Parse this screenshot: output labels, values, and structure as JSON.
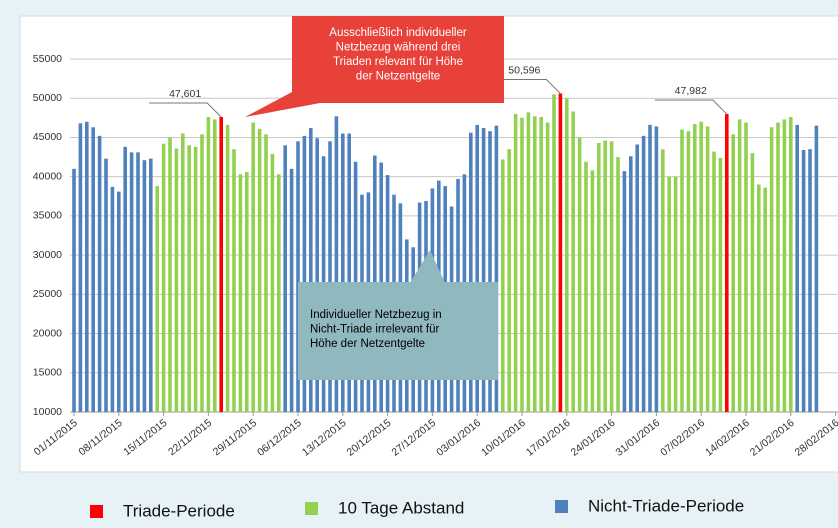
{
  "chart_data": {
    "type": "bar",
    "categories": [
      "01/11/2015",
      null,
      null,
      null,
      null,
      null,
      null,
      "08/11/2015",
      null,
      null,
      null,
      null,
      null,
      null,
      "15/11/2015",
      null,
      null,
      null,
      null,
      null,
      null,
      "22/11/2015",
      null,
      null,
      null,
      null,
      null,
      null,
      "29/11/2015",
      null,
      null,
      null,
      null,
      null,
      null,
      "06/12/2015",
      null,
      null,
      null,
      null,
      null,
      null,
      "13/12/2015",
      null,
      null,
      null,
      null,
      null,
      null,
      "20/12/2015",
      null,
      null,
      null,
      null,
      null,
      null,
      "27/12/2015",
      null,
      null,
      null,
      null,
      null,
      null,
      "03/01/2016",
      null,
      null,
      null,
      null,
      null,
      null,
      "10/01/2016",
      null,
      null,
      null,
      null,
      null,
      null,
      "17/01/2016",
      null,
      null,
      null,
      null,
      null,
      null,
      "24/01/2016",
      null,
      null,
      null,
      null,
      null,
      null,
      "31/01/2016",
      null,
      null,
      null,
      null,
      null,
      null,
      "07/02/2016",
      null,
      null,
      null,
      null,
      null,
      null,
      "14/02/2016",
      null,
      null,
      null,
      null,
      null,
      null,
      "21/02/2016",
      null,
      null,
      null,
      null,
      null,
      null,
      "28/02/2016"
    ],
    "series": [
      {
        "name": "Triade-Periode",
        "color": "#ff0000",
        "values": [
          null,
          null,
          null,
          null,
          null,
          null,
          null,
          null,
          null,
          null,
          null,
          null,
          null,
          null,
          null,
          null,
          null,
          null,
          null,
          null,
          null,
          null,
          null,
          47601,
          null,
          null,
          null,
          null,
          null,
          null,
          null,
          null,
          null,
          null,
          null,
          null,
          null,
          null,
          null,
          null,
          null,
          null,
          null,
          null,
          null,
          null,
          null,
          null,
          null,
          null,
          null,
          null,
          null,
          null,
          null,
          null,
          null,
          null,
          null,
          null,
          null,
          null,
          null,
          null,
          null,
          null,
          null,
          null,
          null,
          null,
          null,
          null,
          null,
          null,
          null,
          null,
          50596,
          null,
          null,
          null,
          null,
          null,
          null,
          null,
          null,
          null,
          null,
          null,
          null,
          null,
          null,
          null,
          null,
          null,
          null,
          null,
          null,
          null,
          null,
          null,
          null,
          null,
          47982,
          null,
          null,
          null,
          null,
          null,
          null,
          null,
          null,
          null,
          null,
          null,
          null,
          null,
          null,
          null,
          null,
          null
        ],
        "value_labels": [
          null,
          null,
          null,
          null,
          null,
          null,
          null,
          null,
          null,
          null,
          null,
          null,
          null,
          null,
          null,
          null,
          null,
          null,
          null,
          null,
          null,
          null,
          null,
          "47,601",
          null,
          null,
          null,
          null,
          null,
          null,
          null,
          null,
          null,
          null,
          null,
          null,
          null,
          null,
          null,
          null,
          null,
          null,
          null,
          null,
          null,
          null,
          null,
          null,
          null,
          null,
          null,
          null,
          null,
          null,
          null,
          null,
          null,
          null,
          null,
          null,
          null,
          null,
          null,
          null,
          null,
          null,
          null,
          null,
          null,
          null,
          null,
          null,
          null,
          null,
          null,
          null,
          "50,596",
          null,
          null,
          null,
          null,
          null,
          null,
          null,
          null,
          null,
          null,
          null,
          null,
          null,
          null,
          null,
          null,
          null,
          null,
          null,
          null,
          null,
          null,
          null,
          null,
          null,
          "47,982",
          null,
          null,
          null,
          null,
          null,
          null,
          null,
          null,
          null,
          null,
          null,
          null,
          null,
          null,
          null,
          null,
          null
        ]
      },
      {
        "name": "10 Tage Abstand",
        "color": "#92d050",
        "values": [
          null,
          null,
          null,
          null,
          null,
          null,
          null,
          null,
          null,
          null,
          null,
          null,
          null,
          38800,
          44200,
          45000,
          43600,
          45500,
          44000,
          43800,
          45400,
          47600,
          47300,
          null,
          46600,
          43500,
          40300,
          40600,
          46900,
          46100,
          45400,
          42900,
          40300,
          null,
          null,
          null,
          null,
          null,
          null,
          null,
          null,
          null,
          null,
          null,
          null,
          null,
          null,
          null,
          null,
          null,
          null,
          null,
          null,
          null,
          null,
          null,
          null,
          null,
          null,
          null,
          null,
          null,
          null,
          null,
          null,
          null,
          null,
          42200,
          43500,
          48000,
          47500,
          48200,
          47700,
          47600,
          46900,
          50500,
          null,
          50000,
          48300,
          45000,
          41900,
          40800,
          44300,
          44600,
          44500,
          42500,
          null,
          null,
          null,
          null,
          null,
          null,
          43500,
          40000,
          40000,
          46000,
          45800,
          46700,
          47000,
          46400,
          43200,
          42400,
          null,
          45400,
          47300,
          46900,
          43000,
          39000,
          38600,
          46300,
          46900,
          47300,
          47600,
          null,
          null,
          null,
          null,
          null,
          null,
          null
        ]
      },
      {
        "name": "Nicht-Triade-Periode",
        "color": "#4f81bd",
        "values": [
          41000,
          46800,
          47000,
          46300,
          45200,
          42300,
          38700,
          38100,
          43800,
          43100,
          43100,
          42100,
          42300,
          null,
          null,
          null,
          null,
          null,
          null,
          null,
          null,
          null,
          null,
          null,
          null,
          null,
          null,
          null,
          null,
          null,
          null,
          null,
          null,
          44000,
          41000,
          44500,
          45200,
          46200,
          44900,
          42600,
          44500,
          47700,
          45500,
          45500,
          41900,
          37700,
          38000,
          42700,
          41800,
          40200,
          37700,
          36600,
          32000,
          31000,
          36700,
          36900,
          38500,
          39500,
          38800,
          36200,
          39700,
          40300,
          45600,
          46600,
          46200,
          45800,
          46500,
          null,
          null,
          null,
          null,
          null,
          null,
          null,
          null,
          null,
          null,
          null,
          null,
          null,
          null,
          null,
          null,
          null,
          null,
          null,
          40700,
          42600,
          44100,
          45200,
          46600,
          46400,
          null,
          null,
          null,
          null,
          null,
          null,
          null,
          null,
          null,
          null,
          null,
          null,
          null,
          null,
          null,
          null,
          null,
          null,
          null,
          null,
          null,
          46600,
          43400,
          43500,
          46500,
          null,
          null,
          null
        ]
      }
    ],
    "ylim": [
      10000,
      55000
    ],
    "yticks": [
      10000,
      15000,
      20000,
      25000,
      30000,
      35000,
      40000,
      45000,
      50000,
      55000
    ],
    "grid": true,
    "annotations": [
      {
        "lines": [
          "Ausschließlich individueller",
          "Netzbezug während drei",
          "Triaden relevant für Höhe",
          "der Netzentgelte"
        ]
      },
      {
        "lines": [
          "Individueller Netzbezug in",
          "Nicht-Triade irrelevant für",
          "Höhe der Netzentgelte"
        ]
      }
    ]
  }
}
